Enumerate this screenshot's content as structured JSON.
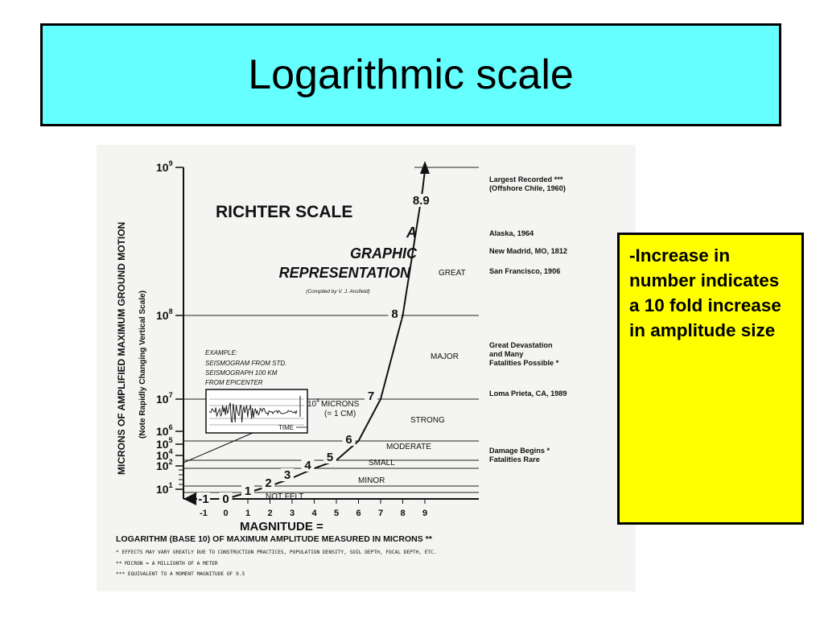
{
  "slide": {
    "title": "Logarithmic scale",
    "note": "-Increase in number indicates a 10 fold increase in amplitude size"
  },
  "colors": {
    "title_bg": "#66ffff",
    "note_bg": "#ffff00"
  },
  "chart_data": {
    "type": "line",
    "heading": "RICHTER SCALE",
    "subheading_1": "A",
    "subheading_2": "GRAPHIC",
    "subheading_3": "REPRESENTATION",
    "credit": "(Compiled by V. J. Ansfield)",
    "ylabel_main": "MICRONS OF AMPLIFIED MAXIMUM GROUND MOTION",
    "ylabel_sub": "(Note Rapidly Changing Vertical Scale)",
    "xlabel_1": "MAGNITUDE =",
    "xlabel_2": "LOGARITHM (BASE 10) OF MAXIMUM AMPLITUDE MEASURED IN MICRONS **",
    "x_ticks": [
      "-1",
      "0",
      "1",
      "2",
      "3",
      "4",
      "5",
      "6",
      "7",
      "8",
      "9"
    ],
    "y_ticks": [
      {
        "label": "10",
        "exp": "9",
        "value": 9
      },
      {
        "label": "10",
        "exp": "8",
        "value": 8
      },
      {
        "label": "10",
        "exp": "7",
        "value": 7
      },
      {
        "label": "10",
        "exp": "6",
        "value": 6
      },
      {
        "label": "10",
        "exp": "5",
        "value": 5
      },
      {
        "label": "10",
        "exp": "4",
        "value": 4
      },
      {
        "label": "10",
        "exp": "2",
        "value": 2
      },
      {
        "label": "10",
        "exp": "1",
        "value": 1
      }
    ],
    "curve_labels": [
      "-1",
      "0",
      "1",
      "2",
      "3",
      "4",
      "5",
      "6",
      "7",
      "8",
      "8.9"
    ],
    "curve_points": [
      {
        "magnitude": -1,
        "amplitude": -1
      },
      {
        "magnitude": 0,
        "amplitude": 0
      },
      {
        "magnitude": 1,
        "amplitude": 1
      },
      {
        "magnitude": 2,
        "amplitude": 2
      },
      {
        "magnitude": 3,
        "amplitude": 3
      },
      {
        "magnitude": 4,
        "amplitude": 4
      },
      {
        "magnitude": 5,
        "amplitude": 5
      },
      {
        "magnitude": 6,
        "amplitude": 6
      },
      {
        "magnitude": 7,
        "amplitude": 7
      },
      {
        "magnitude": 8,
        "amplitude": 8
      },
      {
        "magnitude": 8.9,
        "amplitude": 8.9
      }
    ],
    "categories": [
      {
        "label": "NOT FELT",
        "from": 1,
        "to": 2
      },
      {
        "label": "MINOR",
        "from": 2,
        "to": 4
      },
      {
        "label": "SMALL",
        "from": 4,
        "to": 5
      },
      {
        "label": "MODERATE",
        "from": 5,
        "to": 6
      },
      {
        "label": "STRONG",
        "from": 6,
        "to": 7
      },
      {
        "label": "MAJOR",
        "from": 7,
        "to": 8
      },
      {
        "label": "GREAT",
        "from": 8,
        "to": 9
      }
    ],
    "events": [
      {
        "line1": "Largest Recorded ***",
        "line2": "(Offshore Chile, 1960)"
      },
      {
        "line1": "Alaska, 1964"
      },
      {
        "line1": "New Madrid, MO, 1812"
      },
      {
        "line1": "San Francisco, 1906"
      },
      {
        "line1": "Great Devastation",
        "line2": "and Many",
        "line3": "Fatalities Possible *"
      },
      {
        "line1": "Loma Prieta, CA, 1989"
      },
      {
        "line1": "Damage Begins *",
        "line2": "Fatalities Rare"
      }
    ],
    "example": {
      "line1": "EXAMPLE:",
      "line2": "SEISMOGRAM FROM STD.",
      "line3": "SEISMOGRAPH 100 KM",
      "line4": "FROM EPICENTER",
      "amp_base": "10",
      "amp_exp": "4",
      "amp_unit": "MICRONS",
      "amp_equiv": "(= 1 CM)",
      "time_label": "TIME"
    },
    "footnotes": [
      "* EFFECTS MAY VARY GREATLY DUE TO CONSTRUCTION PRACTICES, POPULATION DENSITY, SOIL DEPTH, FOCAL DEPTH, ETC.",
      "** MICRON = A MILLIONTH OF A METER",
      "*** EQUIVALENT TO A MOMENT MAGNITUDE OF 9.5"
    ]
  }
}
